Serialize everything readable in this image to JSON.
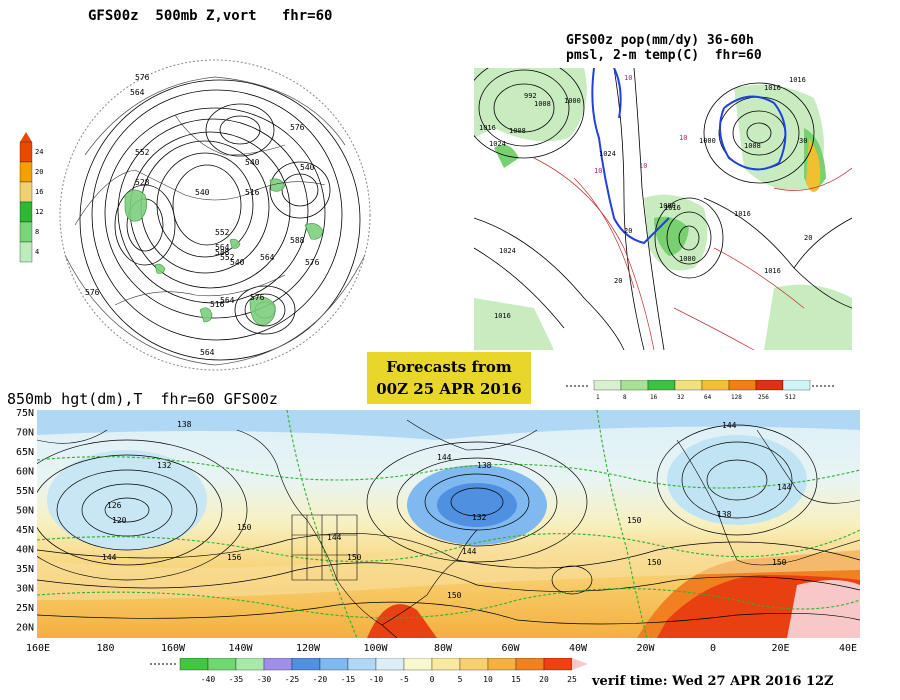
{
  "top_left": {
    "title": "GFS00z  500mb Z,vort   fhr=60",
    "scale_ticks": [
      "24",
      "20",
      "16",
      "12",
      "8",
      "4"
    ],
    "scale_colors": [
      "#e84b00",
      "#f4a000",
      "#f0d070",
      "#30b830",
      "#78d878",
      "#bcecbc"
    ],
    "contour_labels": [
      "576",
      "564",
      "576",
      "552",
      "540",
      "528",
      "540",
      "516",
      "552",
      "564",
      "540",
      "588",
      "564",
      "576",
      "564",
      "576",
      "588",
      "552",
      "540",
      "516",
      "564",
      "576"
    ]
  },
  "top_right": {
    "title_line1": "GFS00z pop(mm/dy) 36-60h",
    "title_line2": "pmsl, 2-m temp(C)  fhr=60",
    "labels": [
      "1016",
      "1008",
      "1024",
      "1000",
      "1008",
      "1016",
      "1024",
      "1000",
      "992",
      "1016",
      "1008",
      "1016",
      "1016",
      "1024",
      "1000",
      "1000",
      "1016",
      "1016",
      "10",
      "10",
      "10",
      "20",
      "20",
      "10",
      "30",
      "20"
    ],
    "legend_ticks": [
      "1",
      "8",
      "16",
      "32",
      "64",
      "128",
      "256",
      "512"
    ],
    "legend_colors": [
      "#d8f0d0",
      "#a8e098",
      "#40c040",
      "#f0e080",
      "#f4c030",
      "#f08010",
      "#e03010",
      "#d0f4f4"
    ]
  },
  "forecast_box": {
    "line1": "Forecasts from",
    "line2": "00Z 25 APR 2016"
  },
  "bottom": {
    "title": "850mb hgt(dm),T  fhr=60 GFS00z",
    "lat_labels": [
      "75N",
      "70N",
      "65N",
      "60N",
      "55N",
      "50N",
      "45N",
      "40N",
      "35N",
      "30N",
      "25N",
      "20N"
    ],
    "lon_labels": [
      "160E",
      "180",
      "160W",
      "140W",
      "120W",
      "100W",
      "80W",
      "60W",
      "40W",
      "20W",
      "0",
      "20E",
      "40E"
    ],
    "contour_labels": [
      "138",
      "132",
      "126",
      "120",
      "144",
      "150",
      "156",
      "144",
      "138",
      "144",
      "150",
      "144",
      "132",
      "150",
      "150",
      "144",
      "150",
      "138",
      "144",
      "150"
    ],
    "legend_ticks": [
      "-40",
      "-35",
      "-30",
      "-25",
      "-20",
      "-15",
      "-10",
      "-5",
      "0",
      "5",
      "10",
      "15",
      "20",
      "25"
    ],
    "legend_colors": [
      "#40c840",
      "#70d870",
      "#a8e8a8",
      "#9f8fe8",
      "#5090e0",
      "#80b8f0",
      "#b0d8f4",
      "#dceff8",
      "#f8f8d0",
      "#f8e8a0",
      "#f8d070",
      "#f4b040",
      "#f08020",
      "#f04010"
    ],
    "verif": "verif time: Wed 27 APR 2016 12Z"
  }
}
